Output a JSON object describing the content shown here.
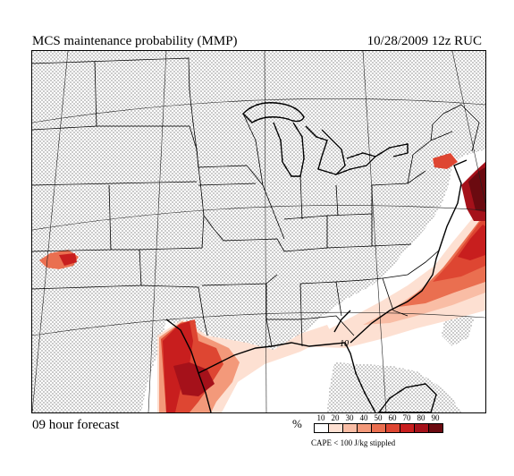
{
  "header": {
    "title": "MCS maintenance probability (MMP)",
    "datetime": "10/28/2009  12z  RUC"
  },
  "footer": {
    "forecast": "09 hour forecast",
    "percent_symbol": "%",
    "stipple_note": "CAPE < 100 J/kg stippled"
  },
  "legend": {
    "levels": [
      "10",
      "20",
      "30",
      "40",
      "50",
      "60",
      "70",
      "80",
      "90"
    ],
    "colors": [
      "#ffffff",
      "#fde0d2",
      "#f9bda5",
      "#f3997a",
      "#ea6f50",
      "#de4632",
      "#c81e1e",
      "#a5111a",
      "#6b0a10"
    ]
  },
  "map": {
    "contour_label": "10",
    "colors": {
      "stipple": "#000000",
      "state_lines": "#000000",
      "graticule": "#222222"
    }
  }
}
